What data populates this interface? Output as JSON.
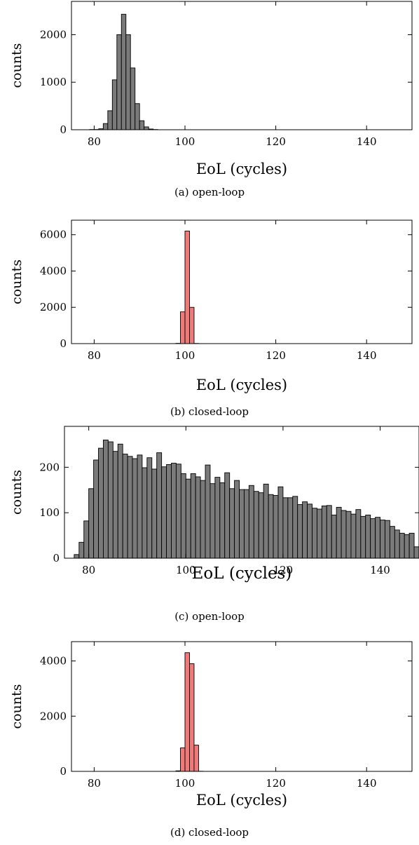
{
  "chart_data": [
    {
      "type": "bar",
      "caption": "(a) open-loop",
      "xlabel": "EoL (cycles)",
      "ylabel": "counts",
      "xlim": [
        75,
        150
      ],
      "ylim": [
        0,
        2700
      ],
      "xticks": [
        80,
        100,
        120,
        140
      ],
      "yticks": [
        0,
        1000,
        2000
      ],
      "bar_color": "#7a7a7a",
      "bins": [
        {
          "x": 79,
          "value": 5
        },
        {
          "x": 80,
          "value": 5
        },
        {
          "x": 81,
          "value": 20
        },
        {
          "x": 82,
          "value": 130
        },
        {
          "x": 83,
          "value": 400
        },
        {
          "x": 84,
          "value": 1050
        },
        {
          "x": 85,
          "value": 2000
        },
        {
          "x": 86,
          "value": 2430
        },
        {
          "x": 87,
          "value": 2000
        },
        {
          "x": 88,
          "value": 1300
        },
        {
          "x": 89,
          "value": 550
        },
        {
          "x": 90,
          "value": 190
        },
        {
          "x": 91,
          "value": 60
        },
        {
          "x": 92,
          "value": 15
        },
        {
          "x": 93,
          "value": 5
        }
      ]
    },
    {
      "type": "bar",
      "caption": "(b) closed-loop",
      "xlabel": "EoL (cycles)",
      "ylabel": "counts",
      "xlim": [
        75,
        150
      ],
      "ylim": [
        0,
        6800
      ],
      "xticks": [
        80,
        100,
        120,
        140
      ],
      "yticks": [
        0,
        2000,
        4000,
        6000
      ],
      "bar_color": "#f07a7a",
      "bins": [
        {
          "x": 98,
          "value": 15
        },
        {
          "x": 99,
          "value": 1750
        },
        {
          "x": 100,
          "value": 6200
        },
        {
          "x": 101,
          "value": 2000
        },
        {
          "x": 102,
          "value": 10
        }
      ]
    },
    {
      "type": "bar",
      "caption": "(c) open-loop",
      "xlabel": "EoL (cycles)",
      "ylabel": "counts",
      "xlim": [
        75,
        148
      ],
      "ylim": [
        0,
        290
      ],
      "xticks": [
        80,
        100,
        120,
        140
      ],
      "yticks": [
        0,
        100,
        200
      ],
      "bar_color": "#7a7a7a",
      "bins": [
        {
          "x": 77,
          "value": 8
        },
        {
          "x": 78,
          "value": 35
        },
        {
          "x": 79,
          "value": 82
        },
        {
          "x": 80,
          "value": 153
        },
        {
          "x": 81,
          "value": 216
        },
        {
          "x": 82,
          "value": 242
        },
        {
          "x": 83,
          "value": 260
        },
        {
          "x": 84,
          "value": 256
        },
        {
          "x": 85,
          "value": 235
        },
        {
          "x": 86,
          "value": 251
        },
        {
          "x": 87,
          "value": 229
        },
        {
          "x": 88,
          "value": 224
        },
        {
          "x": 89,
          "value": 219
        },
        {
          "x": 90,
          "value": 227
        },
        {
          "x": 91,
          "value": 199
        },
        {
          "x": 92,
          "value": 221
        },
        {
          "x": 93,
          "value": 196
        },
        {
          "x": 94,
          "value": 232
        },
        {
          "x": 95,
          "value": 201
        },
        {
          "x": 96,
          "value": 206
        },
        {
          "x": 97,
          "value": 209
        },
        {
          "x": 98,
          "value": 207
        },
        {
          "x": 99,
          "value": 186
        },
        {
          "x": 100,
          "value": 174
        },
        {
          "x": 101,
          "value": 186
        },
        {
          "x": 102,
          "value": 179
        },
        {
          "x": 103,
          "value": 171
        },
        {
          "x": 104,
          "value": 205
        },
        {
          "x": 105,
          "value": 164
        },
        {
          "x": 106,
          "value": 178
        },
        {
          "x": 107,
          "value": 166
        },
        {
          "x": 108,
          "value": 188
        },
        {
          "x": 109,
          "value": 153
        },
        {
          "x": 110,
          "value": 171
        },
        {
          "x": 111,
          "value": 151
        },
        {
          "x": 112,
          "value": 151
        },
        {
          "x": 113,
          "value": 160
        },
        {
          "x": 114,
          "value": 147
        },
        {
          "x": 115,
          "value": 144
        },
        {
          "x": 116,
          "value": 163
        },
        {
          "x": 117,
          "value": 140
        },
        {
          "x": 118,
          "value": 138
        },
        {
          "x": 119,
          "value": 157
        },
        {
          "x": 120,
          "value": 133
        },
        {
          "x": 121,
          "value": 133
        },
        {
          "x": 122,
          "value": 136
        },
        {
          "x": 123,
          "value": 118
        },
        {
          "x": 124,
          "value": 124
        },
        {
          "x": 125,
          "value": 119
        },
        {
          "x": 126,
          "value": 110
        },
        {
          "x": 127,
          "value": 108
        },
        {
          "x": 128,
          "value": 115
        },
        {
          "x": 129,
          "value": 116
        },
        {
          "x": 130,
          "value": 95
        },
        {
          "x": 131,
          "value": 112
        },
        {
          "x": 132,
          "value": 105
        },
        {
          "x": 133,
          "value": 103
        },
        {
          "x": 134,
          "value": 97
        },
        {
          "x": 135,
          "value": 107
        },
        {
          "x": 136,
          "value": 92
        },
        {
          "x": 137,
          "value": 95
        },
        {
          "x": 138,
          "value": 87
        },
        {
          "x": 139,
          "value": 90
        },
        {
          "x": 140,
          "value": 84
        },
        {
          "x": 141,
          "value": 83
        },
        {
          "x": 142,
          "value": 70
        },
        {
          "x": 143,
          "value": 62
        },
        {
          "x": 144,
          "value": 55
        },
        {
          "x": 145,
          "value": 52
        },
        {
          "x": 146,
          "value": 55
        },
        {
          "x": 147,
          "value": 25
        }
      ]
    },
    {
      "type": "bar",
      "caption": "(d) closed-loop",
      "xlabel": "EoL (cycles)",
      "ylabel": "counts",
      "xlim": [
        75,
        150
      ],
      "ylim": [
        0,
        4700
      ],
      "xticks": [
        80,
        100,
        120,
        140
      ],
      "yticks": [
        0,
        2000,
        4000
      ],
      "bar_color": "#f07a7a",
      "bins": [
        {
          "x": 98,
          "value": 20
        },
        {
          "x": 99,
          "value": 850
        },
        {
          "x": 100,
          "value": 4300
        },
        {
          "x": 101,
          "value": 3900
        },
        {
          "x": 102,
          "value": 950
        },
        {
          "x": 103,
          "value": 5
        }
      ]
    }
  ]
}
